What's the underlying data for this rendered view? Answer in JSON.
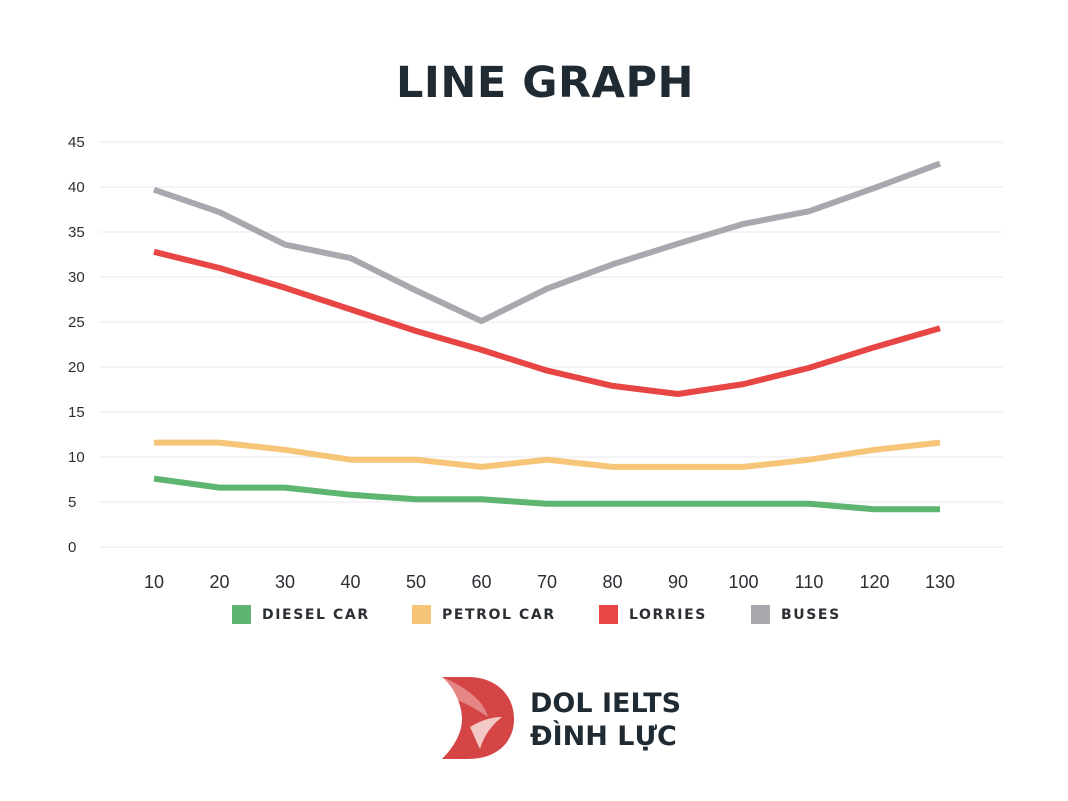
{
  "chart_data": {
    "type": "line",
    "title": "LINE GRAPH",
    "xlabel": "",
    "ylabel": "",
    "x": [
      10,
      20,
      30,
      40,
      50,
      60,
      70,
      80,
      90,
      100,
      110,
      120,
      130
    ],
    "x_tick_labels": [
      "10",
      "20",
      "30",
      "40",
      "50",
      "60",
      "70",
      "80",
      "90",
      "100",
      "110",
      "120",
      "130"
    ],
    "y_tick_labels": [
      "0",
      "5",
      "10",
      "15",
      "20",
      "25",
      "30",
      "35",
      "40",
      "45"
    ],
    "ylim": [
      0,
      45
    ],
    "grid": true,
    "legend_position": "bottom",
    "series": [
      {
        "name": "DIESEL CAR",
        "color": "#5db56f",
        "values": [
          7.6,
          6.6,
          6.6,
          5.8,
          5.3,
          5.3,
          4.8,
          4.8,
          4.8,
          4.8,
          4.8,
          4.2,
          4.2
        ]
      },
      {
        "name": "PETROL CAR",
        "color": "#f7c578",
        "values": [
          11.6,
          11.6,
          10.8,
          9.7,
          9.7,
          8.9,
          9.7,
          8.9,
          8.9,
          8.9,
          9.7,
          10.8,
          11.6
        ]
      },
      {
        "name": "LORRIES",
        "color": "#e84545",
        "values": [
          32.8,
          31.0,
          28.8,
          26.4,
          24.0,
          21.9,
          19.6,
          17.9,
          17.0,
          18.1,
          19.9,
          22.2,
          24.3
        ]
      },
      {
        "name": "BUSES",
        "color": "#a8a8ae",
        "values": [
          39.7,
          37.2,
          33.6,
          32.1,
          28.5,
          25.1,
          28.7,
          31.4,
          33.7,
          35.9,
          37.3,
          39.9,
          42.6
        ]
      }
    ]
  },
  "logo": {
    "line1": "DOL IELTS",
    "line2": "ĐÌNH LỰC",
    "brand_color": "#d64545"
  }
}
